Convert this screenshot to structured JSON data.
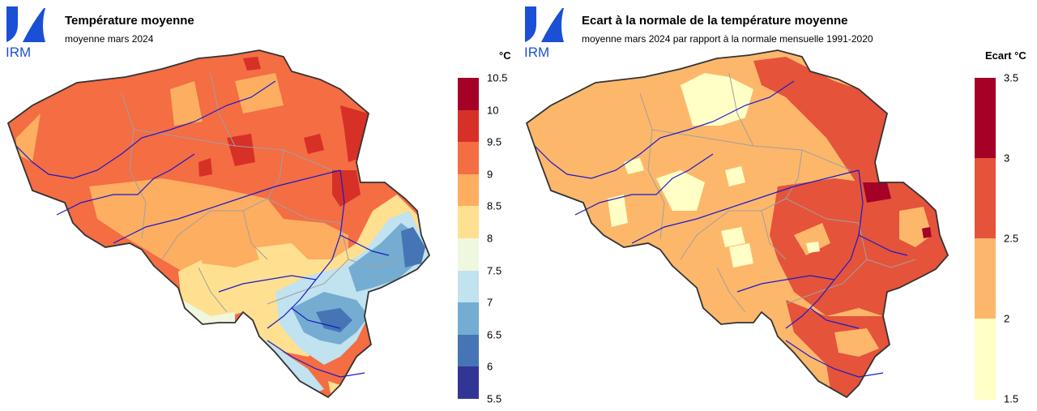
{
  "logo_text": "IRM",
  "left": {
    "title": "Température moyenne",
    "subtitle": "moyenne mars 2024",
    "unit": "°C",
    "legend": {
      "labels": [
        "10.5",
        "10",
        "9.5",
        "9",
        "8.5",
        "8",
        "7.5",
        "7",
        "6.5",
        "6",
        "5.5"
      ],
      "colors": [
        "#a50026",
        "#d73027",
        "#f46d43",
        "#fdae61",
        "#fee090",
        "#f0f7df",
        "#c1e2ef",
        "#74add1",
        "#4575b4",
        "#313695"
      ]
    }
  },
  "right": {
    "title": "Ecart à la normale de la température moyenne",
    "subtitle": "moyenne mars 2024 par rapport à la normale mensuelle 1991-2020",
    "unit": "Ecart °C",
    "legend": {
      "labels": [
        "3.5",
        "3",
        "2.5",
        "2",
        "1.5"
      ],
      "colors": [
        "#a50026",
        "#e5533a",
        "#fdb76b",
        "#ffffc6"
      ]
    }
  },
  "colors": {
    "logo_blue": "#1a4fd6",
    "border": "#333333",
    "river": "#1a1acc",
    "province": "#a0a0a0"
  }
}
